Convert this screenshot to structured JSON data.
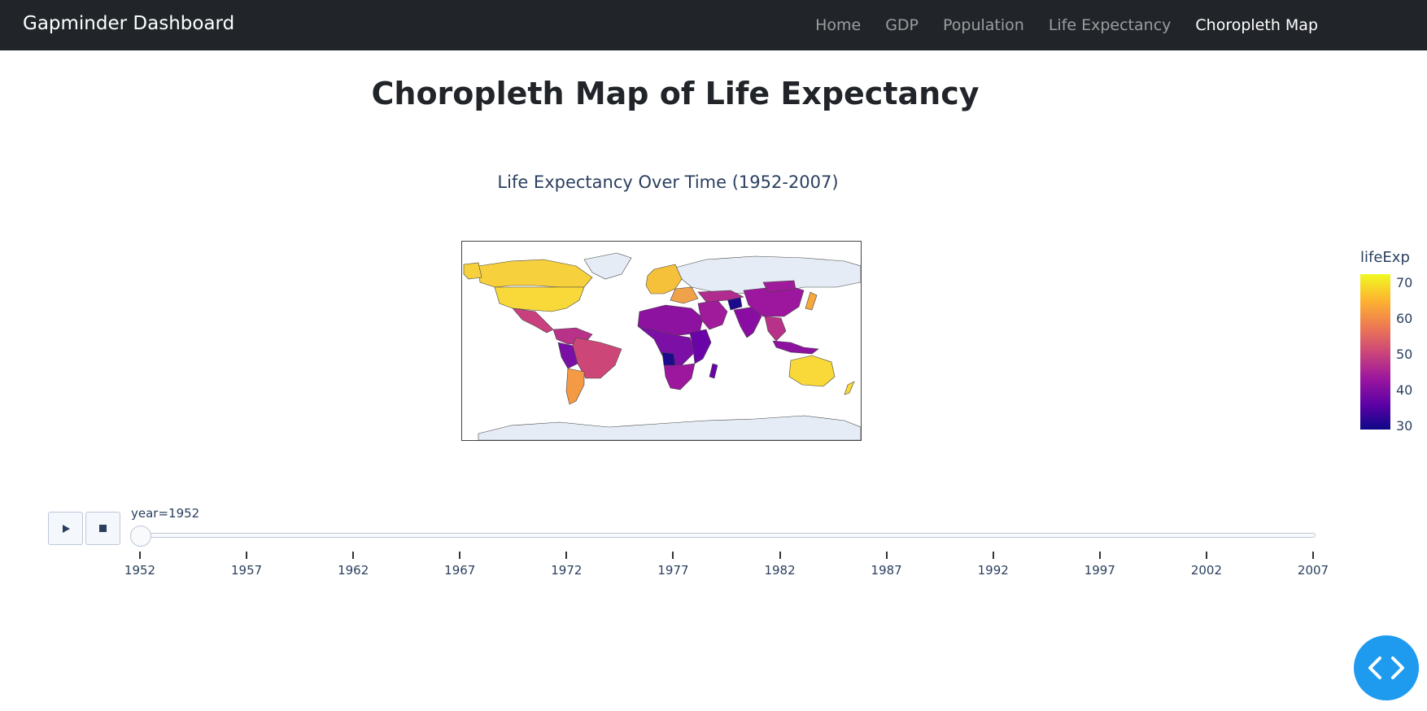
{
  "navbar": {
    "brand": "Gapminder Dashboard",
    "links": [
      {
        "label": "Home",
        "active": false
      },
      {
        "label": "GDP",
        "active": false
      },
      {
        "label": "Population",
        "active": false
      },
      {
        "label": "Life Expectancy",
        "active": false
      },
      {
        "label": "Choropleth Map",
        "active": true
      }
    ]
  },
  "page": {
    "title": "Choropleth Map of Life Expectancy"
  },
  "figure": {
    "title": "Life Expectancy Over Time (1952-2007)",
    "colorbar_title": "lifeExp",
    "colorbar_ticks": [
      "70",
      "60",
      "50",
      "40",
      "30"
    ],
    "colorscale": [
      "#0d0887",
      "#5c01a6",
      "#9c179e",
      "#cc4778",
      "#ed7953",
      "#fdb32f",
      "#f0f921"
    ]
  },
  "animation": {
    "play_icon": "play-icon",
    "stop_icon": "stop-icon",
    "current_label": "year=1952",
    "years": [
      "1952",
      "1957",
      "1962",
      "1967",
      "1972",
      "1977",
      "1982",
      "1987",
      "1992",
      "1997",
      "2002",
      "2007"
    ]
  },
  "fab": {
    "icon": "code-icon"
  }
}
